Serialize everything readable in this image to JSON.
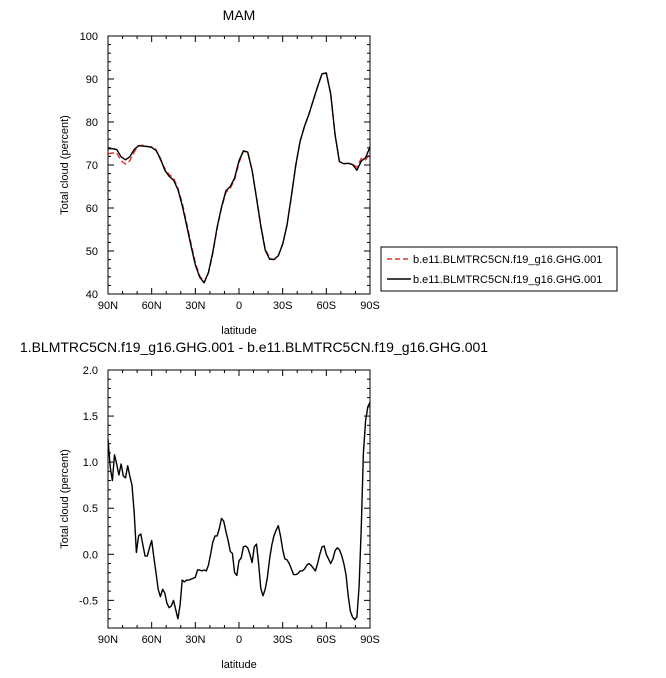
{
  "chart_data": [
    {
      "type": "line",
      "title": "MAM",
      "xlabel": "latitude",
      "ylabel": "Total cloud (percent)",
      "xlim": [
        90,
        -90
      ],
      "ylim": [
        40,
        100
      ],
      "xticks": [
        90,
        60,
        30,
        0,
        -30,
        -60,
        -90
      ],
      "xticklabels": [
        "90N",
        "60N",
        "30N",
        "0",
        "30S",
        "60S",
        "90S"
      ],
      "yticks": [
        40,
        50,
        60,
        70,
        80,
        90,
        100
      ],
      "yticklabels": [
        "40",
        "50",
        "60",
        "70",
        "80",
        "90",
        "100"
      ],
      "grid": false,
      "legend": "right",
      "series": [
        {
          "name": "b.e11.BLMTRC5CN.f19_g16.GHG.001",
          "color": "#e8312a",
          "dash": "dashed",
          "x": [
            90,
            87,
            84,
            81,
            78,
            75,
            72,
            69,
            66,
            63,
            60,
            57,
            54,
            51,
            48,
            45,
            42,
            39,
            36,
            33,
            30,
            27,
            24,
            21,
            18,
            15,
            12,
            9,
            6,
            3,
            0,
            -3,
            -6,
            -9,
            -12,
            -15,
            -18,
            -21,
            -24,
            -27,
            -30,
            -33,
            -36,
            -39,
            -42,
            -45,
            -48,
            -51,
            -54,
            -57,
            -60,
            -63,
            -66,
            -69,
            -72,
            -75,
            -78,
            -81,
            -84,
            -87,
            -90
          ],
          "y": [
            72.6,
            72.8,
            72.8,
            71.0,
            70.2,
            71.0,
            73.0,
            74.5,
            74.6,
            74.3,
            74.2,
            73.6,
            71.2,
            69.2,
            67.8,
            67.0,
            64.6,
            61.2,
            56.5,
            51.8,
            47.3,
            44.2,
            42.8,
            44.8,
            49.5,
            55.4,
            60.0,
            63.6,
            64.6,
            66.6,
            70.5,
            73.2,
            72.9,
            68.7,
            62.5,
            56.0,
            50.5,
            48.4,
            48.0,
            48.9,
            51.7,
            56.0,
            62.8,
            70.0,
            75.5,
            79.0,
            81.8,
            85.0,
            88.2,
            91.2,
            91.4,
            86.5,
            77.0,
            70.8,
            70.3,
            70.4,
            70.2,
            69.5,
            71.5,
            71.2,
            72.7
          ]
        },
        {
          "name": "b.e11.BLMTRC5CN.f19_g16.GHG.001",
          "color": "#000000",
          "dash": "solid",
          "x": [
            90,
            87,
            84,
            81,
            78,
            75,
            72,
            69,
            66,
            63,
            60,
            57,
            54,
            51,
            48,
            45,
            42,
            39,
            36,
            33,
            30,
            27,
            24,
            21,
            18,
            15,
            12,
            9,
            6,
            3,
            0,
            -3,
            -6,
            -9,
            -12,
            -15,
            -18,
            -21,
            -24,
            -27,
            -30,
            -33,
            -36,
            -39,
            -42,
            -45,
            -48,
            -51,
            -54,
            -57,
            -60,
            -63,
            -66,
            -69,
            -72,
            -75,
            -78,
            -81,
            -84,
            -87,
            -90
          ],
          "y": [
            73.8,
            73.8,
            73.6,
            71.9,
            71.2,
            71.9,
            73.6,
            74.5,
            74.4,
            74.3,
            74.1,
            73.4,
            71.5,
            68.8,
            67.4,
            66.5,
            64.3,
            60.6,
            56.0,
            51.2,
            46.8,
            43.9,
            42.6,
            45.0,
            49.7,
            55.6,
            60.2,
            64.0,
            65.0,
            67.0,
            71.0,
            73.3,
            73.0,
            68.8,
            62.3,
            55.8,
            50.2,
            48.1,
            48.0,
            48.9,
            51.6,
            56.0,
            62.8,
            70.0,
            75.5,
            79.0,
            81.8,
            85.0,
            88.2,
            91.2,
            91.4,
            86.5,
            77.0,
            70.8,
            70.3,
            70.4,
            70.1,
            68.8,
            70.9,
            71.7,
            74.2
          ]
        }
      ]
    },
    {
      "type": "line",
      "title": "1.BLMTRC5CN.f19_g16.GHG.001 - b.e11.BLMTRC5CN.f19_g16.GHG.001",
      "xlabel": "latitude",
      "ylabel": "Total cloud (percent)",
      "xlim": [
        90,
        -90
      ],
      "ylim": [
        -0.8,
        2.0
      ],
      "xticks": [
        90,
        60,
        30,
        0,
        -30,
        -60,
        -90
      ],
      "xticklabels": [
        "90N",
        "60N",
        "30N",
        "0",
        "30S",
        "60S",
        "90S"
      ],
      "yticks": [
        -0.5,
        0.0,
        0.5,
        1.0,
        1.5,
        2.0
      ],
      "yticklabels": [
        "-0.5",
        "0.0",
        "0.5",
        "1.0",
        "1.5",
        "2.0"
      ],
      "grid": false,
      "series": [
        {
          "color": "#000000",
          "dash": "solid",
          "x": [
            90,
            88.5,
            87,
            85.5,
            84,
            82.5,
            81,
            79.5,
            78,
            76.5,
            75,
            73.5,
            72,
            70.5,
            69,
            67.5,
            66,
            64.5,
            63,
            61.5,
            60,
            58.5,
            57,
            55.5,
            54,
            52.5,
            51,
            49.5,
            48,
            46.5,
            45,
            43.5,
            42,
            40.5,
            39,
            37.5,
            36,
            34.5,
            33,
            31.5,
            30,
            28.5,
            27,
            25.5,
            24,
            22.5,
            21,
            19.5,
            18,
            16.5,
            15,
            13.5,
            12,
            10.5,
            9,
            7.5,
            6,
            4.5,
            3,
            1.5,
            0,
            -1.5,
            -3,
            -4.5,
            -6,
            -7.5,
            -9,
            -10.5,
            -12,
            -13.5,
            -15,
            -16.5,
            -18,
            -19.5,
            -21,
            -22.5,
            -24,
            -25.5,
            -27,
            -28.5,
            -30,
            -31.5,
            -33,
            -34.5,
            -36,
            -37.5,
            -39,
            -40.5,
            -42,
            -43.5,
            -45,
            -46.5,
            -48,
            -49.5,
            -51,
            -52.5,
            -54,
            -55.5,
            -57,
            -58.5,
            -60,
            -61.5,
            -63,
            -64.5,
            -66,
            -67.5,
            -69,
            -70.5,
            -72,
            -73.5,
            -75,
            -76.5,
            -78,
            -79.5,
            -81,
            -82.5,
            -84,
            -85.5,
            -87,
            -88.5,
            -90
          ],
          "y": [
            1.25,
            0.95,
            0.8,
            1.08,
            0.98,
            0.86,
            0.98,
            0.85,
            0.83,
            0.96,
            0.85,
            0.75,
            0.45,
            0.02,
            0.2,
            0.22,
            0.1,
            -0.02,
            -0.02,
            0.07,
            0.15,
            -0.03,
            -0.2,
            -0.38,
            -0.46,
            -0.38,
            -0.42,
            -0.53,
            -0.58,
            -0.56,
            -0.5,
            -0.6,
            -0.7,
            -0.55,
            -0.28,
            -0.3,
            -0.28,
            -0.28,
            -0.27,
            -0.26,
            -0.25,
            -0.17,
            -0.17,
            -0.18,
            -0.17,
            -0.18,
            -0.12,
            0.0,
            0.13,
            0.2,
            0.2,
            0.28,
            0.39,
            0.36,
            0.25,
            0.15,
            0.03,
            0.01,
            -0.2,
            -0.23,
            -0.07,
            -0.04,
            0.08,
            0.09,
            0.07,
            0.0,
            -0.09,
            0.08,
            0.11,
            -0.1,
            -0.37,
            -0.45,
            -0.38,
            -0.25,
            -0.05,
            0.1,
            0.2,
            0.26,
            0.31,
            0.2,
            0.05,
            -0.05,
            -0.06,
            -0.1,
            -0.16,
            -0.22,
            -0.22,
            -0.21,
            -0.18,
            -0.18,
            -0.16,
            -0.12,
            -0.1,
            -0.12,
            -0.15,
            -0.18,
            -0.1,
            0.0,
            0.08,
            0.09,
            0.0,
            -0.05,
            -0.1,
            -0.05,
            0.04,
            0.07,
            0.05,
            -0.01,
            -0.1,
            -0.22,
            -0.45,
            -0.62,
            -0.68,
            -0.71,
            -0.68,
            -0.35,
            0.3,
            1.1,
            1.45,
            1.6,
            1.65
          ]
        }
      ]
    }
  ]
}
